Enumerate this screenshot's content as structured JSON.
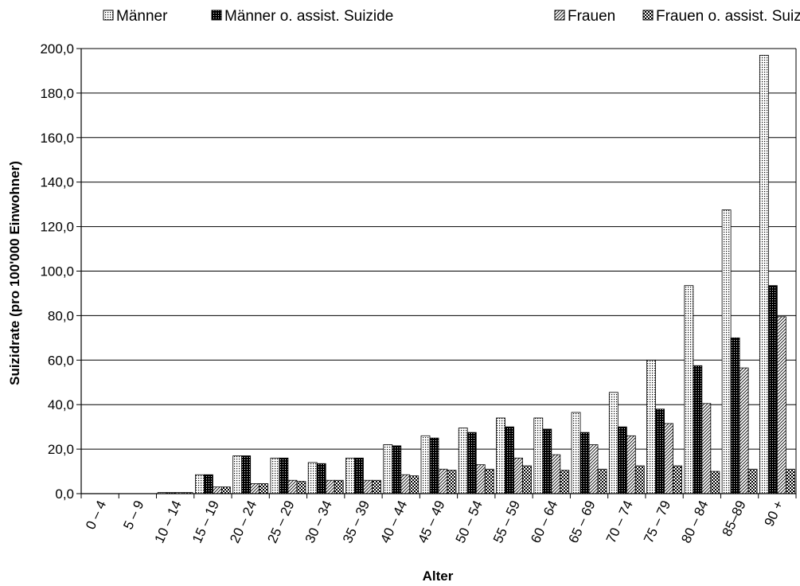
{
  "chart_data": {
    "type": "bar",
    "xlabel": "Alter",
    "ylabel": "Suizidrate (pro 100'000 Einwohner)",
    "ylim": [
      0,
      200
    ],
    "yticks": [
      "0,0",
      "20,0",
      "40,0",
      "60,0",
      "80,0",
      "100,0",
      "120,0",
      "140,0",
      "160,0",
      "180,0",
      "200,0"
    ],
    "grid": true,
    "legend_position": "top",
    "categories": [
      "0 – 4",
      "5 – 9",
      "10 – 14",
      "15 – 19",
      "20 – 24",
      "25 – 29",
      "30 – 34",
      "35 – 39",
      "40 – 44",
      "45 – 49",
      "50 – 54",
      "55 – 59",
      "60 – 64",
      "65 – 69",
      "70 – 74",
      "75 – 79",
      "80 – 84",
      "85–89",
      "90 +"
    ],
    "series": [
      {
        "name": "Männer",
        "pattern": "dots",
        "values": [
          0,
          0,
          0.5,
          8.5,
          17,
          16,
          14,
          16,
          22,
          26,
          29.5,
          34,
          34,
          36.5,
          45.5,
          60,
          93.5,
          127.5,
          197
        ]
      },
      {
        "name": "Männer o. assist. Suizide",
        "pattern": "dense-dark",
        "values": [
          0,
          0,
          0.5,
          8.5,
          17,
          16,
          13.5,
          16,
          21.5,
          25,
          27.5,
          30,
          29,
          27.5,
          30,
          38,
          57.5,
          70,
          93.5
        ]
      },
      {
        "name": "Frauen",
        "pattern": "diagonal",
        "values": [
          0,
          0,
          0.5,
          3,
          4.5,
          6,
          6,
          6,
          8.5,
          11,
          13,
          16,
          17.5,
          22,
          26,
          31.5,
          40.5,
          56.5,
          79.5
        ]
      },
      {
        "name": "Frauen o. assist. Suizide",
        "pattern": "checker",
        "values": [
          0,
          0,
          0.5,
          3,
          4.5,
          5.5,
          6,
          6,
          8,
          10.5,
          11,
          12.5,
          10.5,
          11,
          12.5,
          12.5,
          10,
          11,
          11
        ]
      }
    ]
  }
}
